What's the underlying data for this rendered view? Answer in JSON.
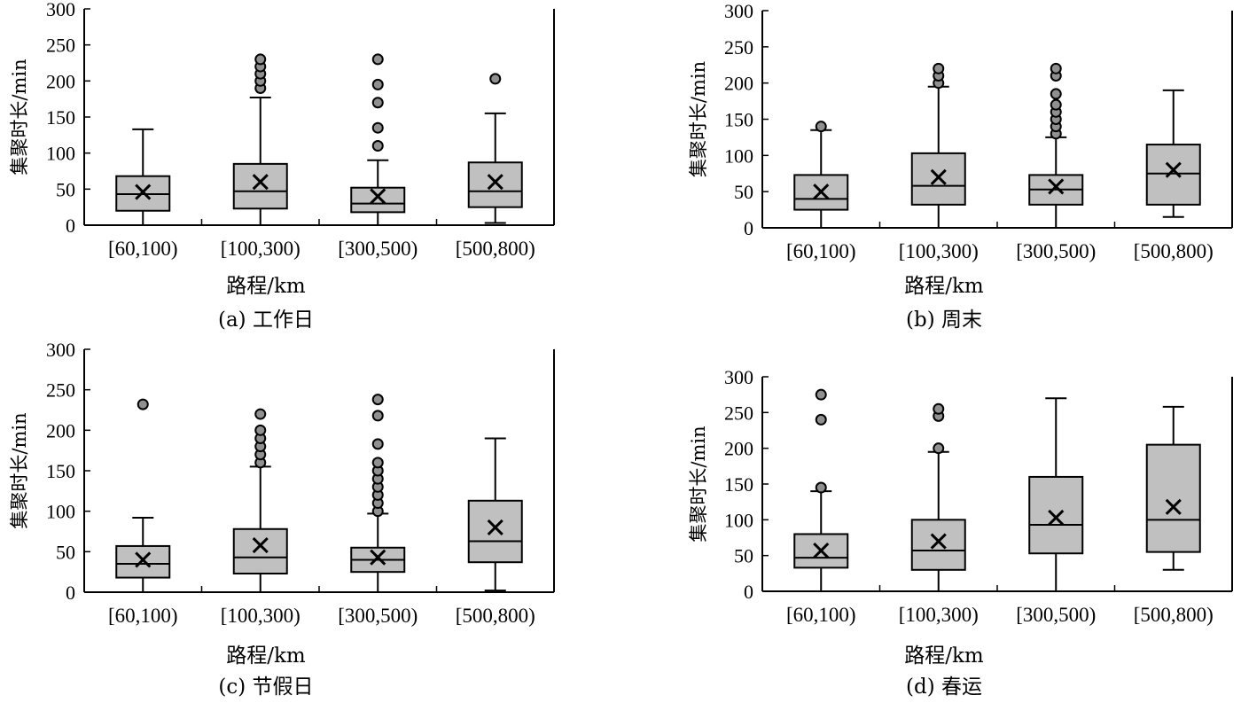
{
  "chart_data": [
    {
      "type": "box",
      "caption": "(a) 工作日",
      "xlabel": "路程/km",
      "ylabel": "集聚时长/min",
      "ylim": [
        0,
        300
      ],
      "yticks": [
        0,
        50,
        100,
        150,
        200,
        250,
        300
      ],
      "categories": [
        "[60,100)",
        "[100,300)",
        "[300,500)",
        "[500,800)"
      ],
      "boxes": [
        {
          "min": 0,
          "q1": 20,
          "median": 43,
          "q3": 68,
          "max": 133,
          "mean": 46,
          "outliers": []
        },
        {
          "min": 0,
          "q1": 23,
          "median": 47,
          "q3": 85,
          "max": 177,
          "mean": 60,
          "outliers": [
            190,
            200,
            210,
            220,
            230
          ]
        },
        {
          "min": 0,
          "q1": 18,
          "median": 30,
          "q3": 52,
          "max": 90,
          "mean": 40,
          "outliers": [
            110,
            135,
            170,
            195,
            230
          ]
        },
        {
          "min": 3,
          "q1": 25,
          "median": 47,
          "q3": 87,
          "max": 155,
          "mean": 60,
          "outliers": [
            203
          ]
        }
      ]
    },
    {
      "type": "box",
      "caption": "(b) 周末",
      "xlabel": "路程/km",
      "ylabel": "集聚时长/min",
      "ylim": [
        0,
        300
      ],
      "yticks": [
        0,
        50,
        100,
        150,
        200,
        250,
        300
      ],
      "categories": [
        "[60,100)",
        "[100,300)",
        "[300,500)",
        "[500,800)"
      ],
      "boxes": [
        {
          "min": 0,
          "q1": 25,
          "median": 40,
          "q3": 73,
          "max": 135,
          "mean": 50,
          "outliers": [
            140
          ]
        },
        {
          "min": 0,
          "q1": 32,
          "median": 58,
          "q3": 103,
          "max": 195,
          "mean": 70,
          "outliers": [
            200,
            210,
            220
          ]
        },
        {
          "min": 0,
          "q1": 32,
          "median": 53,
          "q3": 73,
          "max": 125,
          "mean": 57,
          "outliers": [
            130,
            140,
            150,
            160,
            170,
            185,
            210,
            220
          ]
        },
        {
          "min": 15,
          "q1": 32,
          "median": 75,
          "q3": 115,
          "max": 190,
          "mean": 80,
          "outliers": []
        }
      ]
    },
    {
      "type": "box",
      "caption": "(c) 节假日",
      "xlabel": "路程/km",
      "ylabel": "集聚时长/min",
      "ylim": [
        0,
        300
      ],
      "yticks": [
        0,
        50,
        100,
        150,
        200,
        250,
        300
      ],
      "categories": [
        "[60,100)",
        "[100,300)",
        "[300,500)",
        "[500,800)"
      ],
      "boxes": [
        {
          "min": 0,
          "q1": 18,
          "median": 35,
          "q3": 57,
          "max": 92,
          "mean": 40,
          "outliers": [
            232
          ]
        },
        {
          "min": 0,
          "q1": 23,
          "median": 43,
          "q3": 78,
          "max": 155,
          "mean": 58,
          "outliers": [
            160,
            170,
            180,
            190,
            200,
            220
          ]
        },
        {
          "min": 0,
          "q1": 25,
          "median": 40,
          "q3": 55,
          "max": 97,
          "mean": 43,
          "outliers": [
            100,
            110,
            120,
            130,
            140,
            150,
            160,
            183,
            218,
            238
          ]
        },
        {
          "min": 2,
          "q1": 37,
          "median": 63,
          "q3": 113,
          "max": 190,
          "mean": 80,
          "outliers": []
        }
      ]
    },
    {
      "type": "box",
      "caption": "(d) 春运",
      "xlabel": "路程/km",
      "ylabel": "集聚时长/min",
      "ylim": [
        0,
        300
      ],
      "yticks": [
        0,
        50,
        100,
        150,
        200,
        250,
        300
      ],
      "categories": [
        "[60,100)",
        "[100,300)",
        "[300,500)",
        "[500,800)"
      ],
      "boxes": [
        {
          "min": 0,
          "q1": 33,
          "median": 47,
          "q3": 80,
          "max": 140,
          "mean": 57,
          "outliers": [
            145,
            240,
            275
          ]
        },
        {
          "min": 0,
          "q1": 30,
          "median": 57,
          "q3": 100,
          "max": 195,
          "mean": 70,
          "outliers": [
            200,
            245,
            255
          ]
        },
        {
          "min": 0,
          "q1": 53,
          "median": 93,
          "q3": 160,
          "max": 270,
          "mean": 103,
          "outliers": []
        },
        {
          "min": 30,
          "q1": 55,
          "median": 100,
          "q3": 205,
          "max": 258,
          "mean": 118,
          "outliers": []
        }
      ]
    }
  ]
}
